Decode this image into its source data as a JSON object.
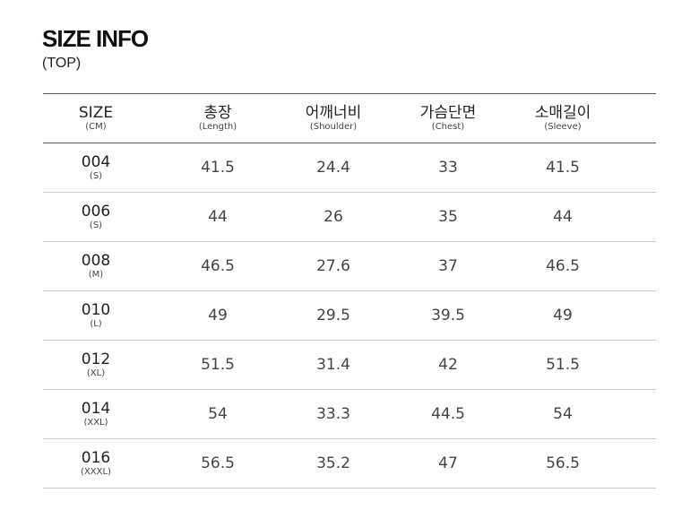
{
  "title": "SIZE INFO",
  "subtitle": "(TOP)",
  "headers": [
    {
      "main": "SIZE",
      "sub": "(CM)"
    },
    {
      "main": "총장",
      "sub": "(Length)"
    },
    {
      "main": "어깨너비",
      "sub": "(Shoulder)"
    },
    {
      "main": "가슴단면",
      "sub": "(Chest)"
    },
    {
      "main": "소매길이",
      "sub": "(Sleeve)"
    }
  ],
  "rows": [
    {
      "size": "004",
      "label": "(S)",
      "values": [
        "41.5",
        "24.4",
        "33",
        "41.5"
      ]
    },
    {
      "size": "006",
      "label": "(S)",
      "values": [
        "44",
        "26",
        "35",
        "44"
      ]
    },
    {
      "size": "008",
      "label": "(M)",
      "values": [
        "46.5",
        "27.6",
        "37",
        "46.5"
      ]
    },
    {
      "size": "010",
      "label": "(L)",
      "values": [
        "49",
        "29.5",
        "39.5",
        "49"
      ]
    },
    {
      "size": "012",
      "label": "(XL)",
      "values": [
        "51.5",
        "31.4",
        "42",
        "51.5"
      ]
    },
    {
      "size": "014",
      "label": "(XXL)",
      "values": [
        "54",
        "33.3",
        "44.5",
        "54"
      ]
    },
    {
      "size": "016",
      "label": "(XXXL)",
      "values": [
        "56.5",
        "35.2",
        "47",
        "56.5"
      ]
    }
  ]
}
